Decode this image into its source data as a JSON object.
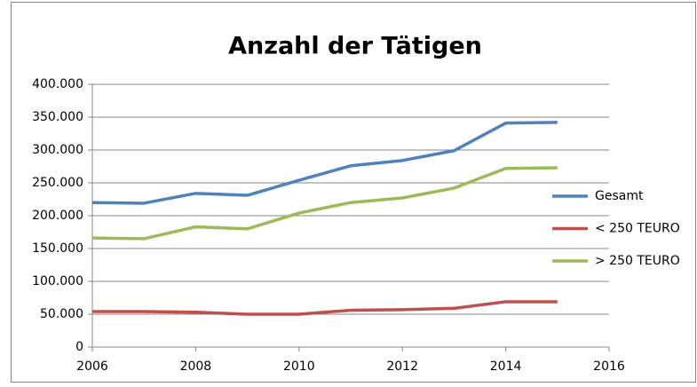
{
  "chart_data": {
    "type": "line",
    "title": "Anzahl der Tätigen",
    "x": [
      2006,
      2007,
      2008,
      2009,
      2010,
      2011,
      2012,
      2013,
      2014,
      2015
    ],
    "series": [
      {
        "name": "Gesamt",
        "color": "#4f81bd",
        "values": [
          220000,
          219000,
          234000,
          231000,
          254000,
          276000,
          284000,
          299000,
          341000,
          342000
        ]
      },
      {
        "name": "< 250 TEURO",
        "color": "#c0504d",
        "values": [
          54000,
          54000,
          53000,
          50000,
          50000,
          56000,
          57000,
          59000,
          69000,
          69000
        ]
      },
      {
        "name": "> 250 TEURO",
        "color": "#9bbb59",
        "values": [
          166000,
          165000,
          183000,
          180000,
          204000,
          220000,
          227000,
          242000,
          272000,
          273000
        ]
      }
    ],
    "xlim": [
      2006,
      2016
    ],
    "xticks": [
      2006,
      2008,
      2010,
      2012,
      2014,
      2016
    ],
    "ylim": [
      0,
      400000
    ],
    "yticks": [
      0,
      {
        "value": 50000,
        "label": "50.000"
      },
      {
        "value": 100000,
        "label": "100.000"
      },
      {
        "value": 150000,
        "label": "150.000"
      },
      {
        "value": 200000,
        "label": "200.000"
      },
      {
        "value": 250000,
        "label": "250.000"
      },
      {
        "value": 300000,
        "label": "300.000"
      },
      {
        "value": 350000,
        "label": "350.000"
      },
      {
        "value": 400000,
        "label": "400.000"
      }
    ],
    "grid": true,
    "legend": "right"
  }
}
